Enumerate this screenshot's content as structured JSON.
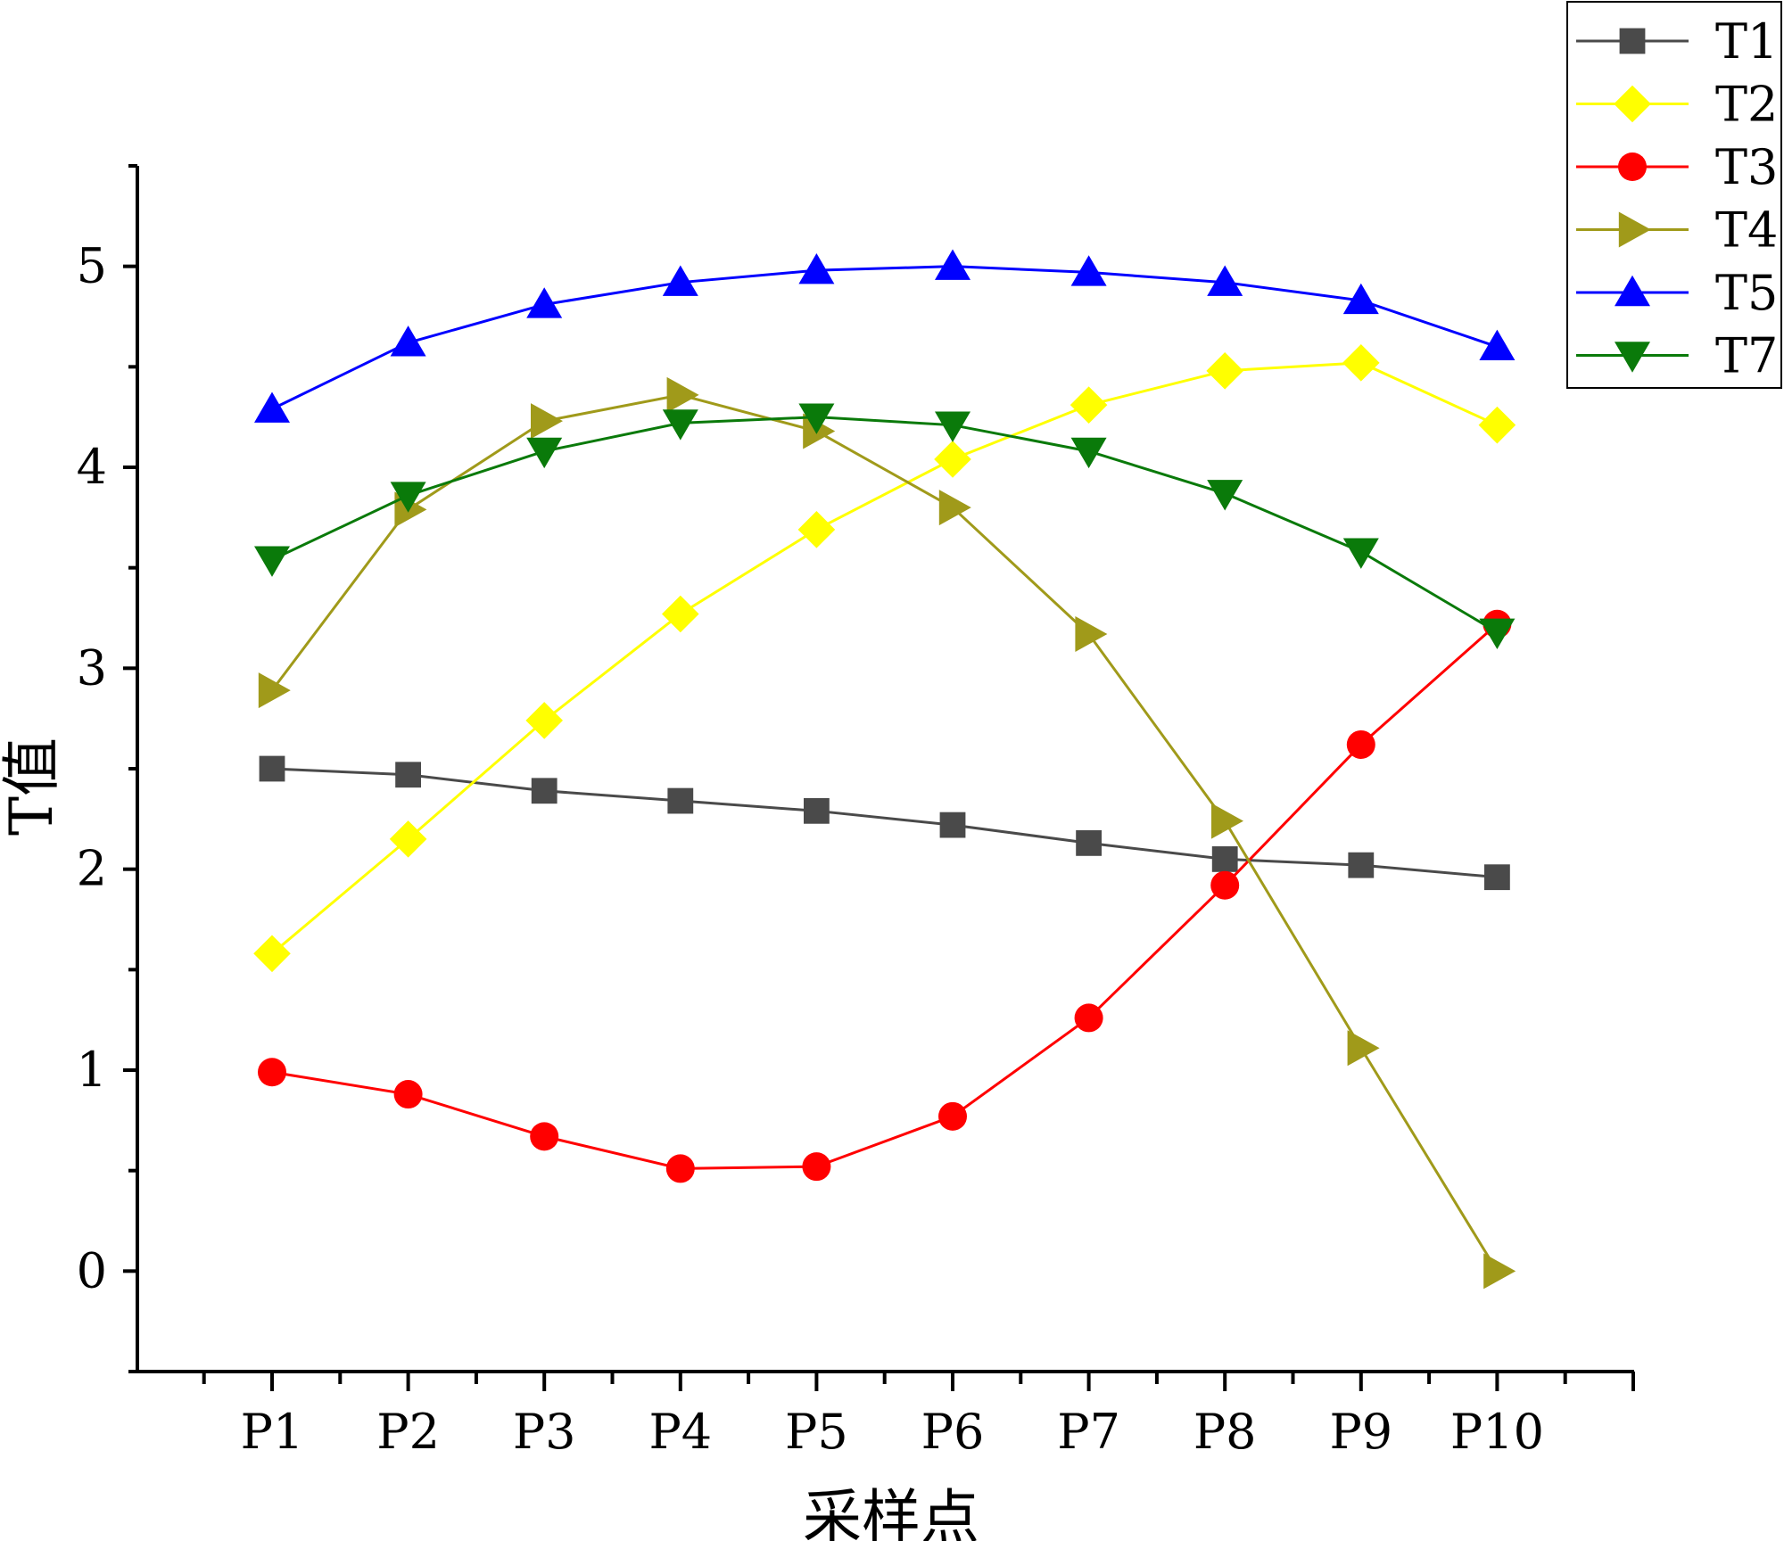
{
  "chart_data": {
    "type": "line",
    "title": "",
    "xlabel": "采样点",
    "ylabel": "T值",
    "categories": [
      "P1",
      "P2",
      "P3",
      "P4",
      "P5",
      "P6",
      "P7",
      "P8",
      "P9",
      "P10"
    ],
    "ylim": [
      -0.5,
      5.5
    ],
    "yticks": [
      0,
      1,
      2,
      3,
      4,
      5
    ],
    "grid": false,
    "legend_position": "top-right",
    "series": [
      {
        "name": "T1",
        "color": "#4a4a4a",
        "marker": "square",
        "values": [
          2.5,
          2.47,
          2.39,
          2.34,
          2.29,
          2.22,
          2.13,
          2.05,
          2.02,
          1.96
        ]
      },
      {
        "name": "T2",
        "color": "#ffff00",
        "marker": "diamond",
        "values": [
          1.58,
          2.15,
          2.74,
          3.27,
          3.69,
          4.04,
          4.31,
          4.48,
          4.52,
          4.21
        ]
      },
      {
        "name": "T3",
        "color": "#ff0000",
        "marker": "circle",
        "values": [
          0.99,
          0.88,
          0.67,
          0.51,
          0.52,
          0.77,
          1.26,
          1.92,
          2.62,
          3.22
        ]
      },
      {
        "name": "T4",
        "color": "#a09a1a",
        "marker": "triangle-right",
        "values": [
          2.89,
          3.79,
          4.23,
          4.36,
          4.18,
          3.8,
          3.17,
          2.24,
          1.11,
          0.0
        ]
      },
      {
        "name": "T5",
        "color": "#0000ff",
        "marker": "triangle-up",
        "values": [
          4.29,
          4.62,
          4.81,
          4.92,
          4.98,
          5.0,
          4.97,
          4.92,
          4.83,
          4.6
        ]
      },
      {
        "name": "T7",
        "color": "#0a7a0a",
        "marker": "triangle-down",
        "values": [
          3.54,
          3.86,
          4.08,
          4.22,
          4.25,
          4.21,
          4.08,
          3.87,
          3.58,
          3.18
        ]
      }
    ]
  }
}
